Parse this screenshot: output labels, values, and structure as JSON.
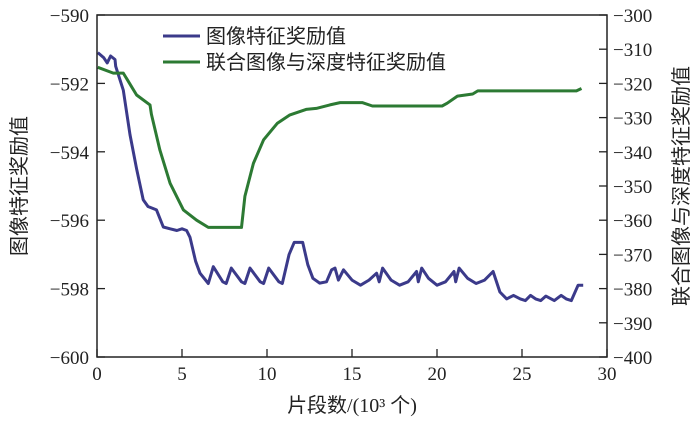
{
  "chart_data": {
    "type": "line",
    "xlabel": "片段数/(10³ 个)",
    "ylabel_left": "图像特征奖励值",
    "ylabel_right": "联合图像与深度特征奖励值",
    "xlim": [
      0,
      30
    ],
    "ylim_left": [
      -600,
      -590
    ],
    "ylim_right": [
      -400,
      -300
    ],
    "x_ticks": [
      "0",
      "5",
      "10",
      "15",
      "20",
      "25",
      "30"
    ],
    "y_ticks_left": [
      "-600",
      "-598",
      "-596",
      "-594",
      "-592",
      "-590"
    ],
    "y_ticks_right": [
      "-400",
      "-390",
      "-380",
      "-370",
      "-360",
      "-350",
      "-340",
      "-330",
      "-320",
      "-310",
      "-300"
    ],
    "grid": false,
    "legend_position": "top-left",
    "series": [
      {
        "name": "图像特征奖励值",
        "axis": "left",
        "color": "#3b3a8a",
        "points": [
          [
            0.05,
            -591.1
          ],
          [
            0.4,
            -591.25
          ],
          [
            0.6,
            -591.4
          ],
          [
            0.8,
            -591.2
          ],
          [
            1.06,
            -591.3
          ],
          [
            1.1,
            -591.5
          ],
          [
            1.55,
            -592.2
          ],
          [
            1.94,
            -593.5
          ],
          [
            2.33,
            -594.5
          ],
          [
            2.72,
            -595.4
          ],
          [
            3.0,
            -595.6
          ],
          [
            3.5,
            -595.7
          ],
          [
            3.9,
            -596.2
          ],
          [
            4.3,
            -596.25
          ],
          [
            4.7,
            -596.3
          ],
          [
            5.0,
            -596.25
          ],
          [
            5.27,
            -596.3
          ],
          [
            5.47,
            -596.5
          ],
          [
            5.8,
            -597.2
          ],
          [
            6.06,
            -597.55
          ],
          [
            6.55,
            -597.85
          ],
          [
            6.84,
            -597.36
          ],
          [
            7.4,
            -597.8
          ],
          [
            7.6,
            -597.85
          ],
          [
            7.9,
            -597.4
          ],
          [
            8.5,
            -597.8
          ],
          [
            8.7,
            -597.85
          ],
          [
            9.0,
            -597.4
          ],
          [
            9.6,
            -597.8
          ],
          [
            9.8,
            -597.85
          ],
          [
            10.1,
            -597.4
          ],
          [
            10.7,
            -597.8
          ],
          [
            10.9,
            -597.85
          ],
          [
            11.3,
            -597.0
          ],
          [
            11.6,
            -596.65
          ],
          [
            12.1,
            -596.65
          ],
          [
            12.4,
            -597.3
          ],
          [
            12.7,
            -597.7
          ],
          [
            13.1,
            -597.84
          ],
          [
            13.5,
            -597.8
          ],
          [
            13.8,
            -597.45
          ],
          [
            14.0,
            -597.4
          ],
          [
            14.2,
            -597.75
          ],
          [
            14.5,
            -597.45
          ],
          [
            15.0,
            -597.75
          ],
          [
            15.5,
            -597.9
          ],
          [
            16.0,
            -597.75
          ],
          [
            16.45,
            -597.55
          ],
          [
            16.6,
            -597.8
          ],
          [
            16.8,
            -597.4
          ],
          [
            17.3,
            -597.75
          ],
          [
            17.8,
            -597.9
          ],
          [
            18.3,
            -597.8
          ],
          [
            18.8,
            -597.5
          ],
          [
            18.9,
            -597.8
          ],
          [
            19.1,
            -597.4
          ],
          [
            19.5,
            -597.7
          ],
          [
            20.0,
            -597.9
          ],
          [
            20.5,
            -597.8
          ],
          [
            21.0,
            -597.5
          ],
          [
            21.1,
            -597.8
          ],
          [
            21.3,
            -597.4
          ],
          [
            21.8,
            -597.7
          ],
          [
            22.3,
            -597.85
          ],
          [
            22.8,
            -597.75
          ],
          [
            23.3,
            -597.5
          ],
          [
            23.7,
            -598.1
          ],
          [
            24.1,
            -598.3
          ],
          [
            24.5,
            -598.2
          ],
          [
            24.9,
            -598.3
          ],
          [
            25.2,
            -598.35
          ],
          [
            25.5,
            -598.2
          ],
          [
            25.8,
            -598.3
          ],
          [
            26.1,
            -598.35
          ],
          [
            26.4,
            -598.22
          ],
          [
            26.9,
            -598.35
          ],
          [
            27.3,
            -598.2
          ],
          [
            27.6,
            -598.3
          ],
          [
            27.9,
            -598.35
          ],
          [
            28.3,
            -597.9
          ],
          [
            28.6,
            -597.9
          ]
        ]
      },
      {
        "name": "联合图像与深度特征奖励值",
        "axis": "right",
        "color": "#2c7a33",
        "points": [
          [
            0.05,
            -315.3
          ],
          [
            0.96,
            -317
          ],
          [
            1.55,
            -317
          ],
          [
            2.33,
            -323.4
          ],
          [
            3.12,
            -326.3
          ],
          [
            3.2,
            -329
          ],
          [
            3.7,
            -339.5
          ],
          [
            4.3,
            -349.2
          ],
          [
            5.08,
            -357
          ],
          [
            5.86,
            -360
          ],
          [
            6.55,
            -362.1
          ],
          [
            8.5,
            -362.1
          ],
          [
            8.7,
            -353
          ],
          [
            9.2,
            -343.4
          ],
          [
            9.8,
            -336.5
          ],
          [
            10.6,
            -331.7
          ],
          [
            11.35,
            -329.2
          ],
          [
            12.3,
            -327.6
          ],
          [
            12.9,
            -327.3
          ],
          [
            13.7,
            -326.3
          ],
          [
            14.3,
            -325.6
          ],
          [
            15.6,
            -325.6
          ],
          [
            16.2,
            -326.6
          ],
          [
            20.3,
            -326.6
          ],
          [
            20.6,
            -325.8
          ],
          [
            21.2,
            -323.7
          ],
          [
            22.1,
            -323.1
          ],
          [
            22.4,
            -322.2
          ],
          [
            28.2,
            -322.2
          ],
          [
            28.5,
            -321.5
          ]
        ]
      }
    ]
  }
}
